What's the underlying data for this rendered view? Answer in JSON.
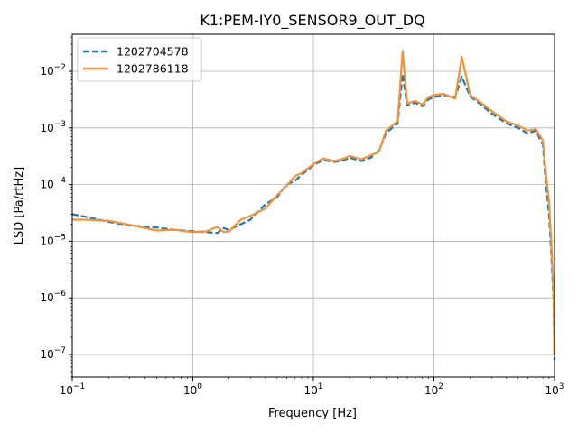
{
  "chart_data": {
    "type": "line",
    "title": "K1:PEM-IY0_SENSOR9_OUT_DQ",
    "xlabel": "Frequency [Hz]",
    "ylabel": "LSD [Pa/rtHz]",
    "xscale": "log",
    "yscale": "log",
    "xlim": [
      0.1,
      1000
    ],
    "ylim": [
      4e-08,
      0.045
    ],
    "grid": true,
    "legend_position": "upper-left",
    "x_ticks": [
      {
        "base": "10",
        "exp": "−1",
        "value": 0.1
      },
      {
        "base": "10",
        "exp": "0",
        "value": 1
      },
      {
        "base": "10",
        "exp": "1",
        "value": 10
      },
      {
        "base": "10",
        "exp": "2",
        "value": 100
      },
      {
        "base": "10",
        "exp": "3",
        "value": 1000
      }
    ],
    "y_ticks": [
      {
        "base": "10",
        "exp": "−7",
        "value": 1e-07
      },
      {
        "base": "10",
        "exp": "−6",
        "value": 1e-06
      },
      {
        "base": "10",
        "exp": "−5",
        "value": 1e-05
      },
      {
        "base": "10",
        "exp": "−4",
        "value": 0.0001
      },
      {
        "base": "10",
        "exp": "−3",
        "value": 0.001
      },
      {
        "base": "10",
        "exp": "−2",
        "value": 0.01
      }
    ],
    "series": [
      {
        "name": "1202704578",
        "color": "#1f77b4",
        "style": "dashed",
        "points": [
          [
            0.1,
            3e-05
          ],
          [
            0.13,
            2.7e-05
          ],
          [
            0.2,
            2.2e-05
          ],
          [
            0.3,
            1.9e-05
          ],
          [
            0.5,
            1.75e-05
          ],
          [
            0.7,
            1.6e-05
          ],
          [
            1.0,
            1.5e-05
          ],
          [
            1.3,
            1.45e-05
          ],
          [
            1.6,
            1.4e-05
          ],
          [
            1.8,
            1.7e-05
          ],
          [
            2.0,
            1.6e-05
          ],
          [
            2.5,
            2e-05
          ],
          [
            3.0,
            2.4e-05
          ],
          [
            4.0,
            4.5e-05
          ],
          [
            5.0,
            6e-05
          ],
          [
            6.0,
            0.0001
          ],
          [
            7.0,
            0.000115
          ],
          [
            8.0,
            0.00015
          ],
          [
            10,
            0.00022
          ],
          [
            12,
            0.00027
          ],
          [
            15,
            0.00025
          ],
          [
            18,
            0.00027
          ],
          [
            20,
            0.0003
          ],
          [
            25,
            0.00026
          ],
          [
            30,
            0.0003
          ],
          [
            35,
            0.0004
          ],
          [
            40,
            0.0008
          ],
          [
            45,
            0.001
          ],
          [
            50,
            0.0012
          ],
          [
            55,
            0.009
          ],
          [
            60,
            0.0025
          ],
          [
            70,
            0.0028
          ],
          [
            80,
            0.0024
          ],
          [
            90,
            0.0032
          ],
          [
            100,
            0.0035
          ],
          [
            120,
            0.0038
          ],
          [
            150,
            0.0035
          ],
          [
            170,
            0.008
          ],
          [
            200,
            0.0036
          ],
          [
            250,
            0.0025
          ],
          [
            300,
            0.0018
          ],
          [
            400,
            0.0012
          ],
          [
            500,
            0.001
          ],
          [
            600,
            0.0008
          ],
          [
            700,
            0.0009
          ],
          [
            800,
            0.0005
          ],
          [
            850,
            0.0001
          ],
          [
            900,
            3e-05
          ],
          [
            950,
            4e-06
          ],
          [
            980,
            1e-06
          ],
          [
            1000,
            8e-08
          ]
        ]
      },
      {
        "name": "1202786118",
        "color": "#f1933a",
        "style": "solid",
        "points": [
          [
            0.1,
            2.4e-05
          ],
          [
            0.13,
            2.4e-05
          ],
          [
            0.2,
            2.3e-05
          ],
          [
            0.3,
            1.95e-05
          ],
          [
            0.5,
            1.55e-05
          ],
          [
            0.7,
            1.6e-05
          ],
          [
            1.0,
            1.45e-05
          ],
          [
            1.3,
            1.5e-05
          ],
          [
            1.6,
            1.8e-05
          ],
          [
            1.8,
            1.45e-05
          ],
          [
            2.0,
            1.5e-05
          ],
          [
            2.5,
            2.4e-05
          ],
          [
            3.0,
            2.8e-05
          ],
          [
            4.0,
            3.8e-05
          ],
          [
            5.0,
            6.5e-05
          ],
          [
            6.0,
            9.5e-05
          ],
          [
            7.0,
            0.00014
          ],
          [
            8.0,
            0.00016
          ],
          [
            10,
            0.00023
          ],
          [
            12,
            0.00029
          ],
          [
            15,
            0.00026
          ],
          [
            18,
            0.00029
          ],
          [
            20,
            0.00032
          ],
          [
            25,
            0.00028
          ],
          [
            30,
            0.00033
          ],
          [
            35,
            0.00038
          ],
          [
            40,
            0.0009
          ],
          [
            45,
            0.0011
          ],
          [
            50,
            0.0013
          ],
          [
            55,
            0.023
          ],
          [
            60,
            0.0027
          ],
          [
            70,
            0.003
          ],
          [
            80,
            0.0026
          ],
          [
            90,
            0.0035
          ],
          [
            100,
            0.0038
          ],
          [
            120,
            0.004
          ],
          [
            150,
            0.0033
          ],
          [
            170,
            0.018
          ],
          [
            200,
            0.0038
          ],
          [
            250,
            0.0027
          ],
          [
            300,
            0.002
          ],
          [
            400,
            0.0013
          ],
          [
            500,
            0.0011
          ],
          [
            600,
            0.0009
          ],
          [
            700,
            0.00095
          ],
          [
            800,
            0.0006
          ],
          [
            850,
            0.00015
          ],
          [
            900,
            5e-05
          ],
          [
            950,
            6e-06
          ],
          [
            980,
            1.5e-06
          ],
          [
            1000,
            1e-07
          ]
        ]
      }
    ]
  }
}
